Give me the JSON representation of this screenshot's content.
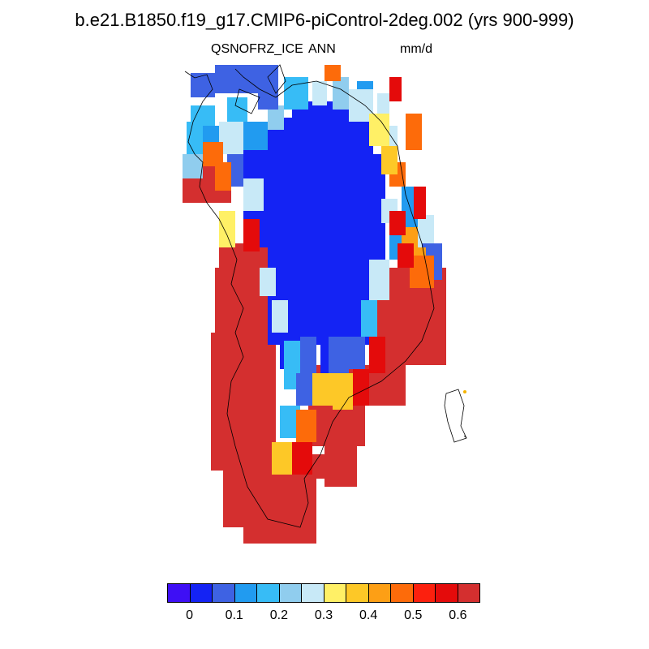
{
  "title": "b.e21.B1850.f19_g17.CMIP6-piControl-2deg.002 (yrs 900-999)",
  "variable": "QSNOFRZ_ICE",
  "season": "ANN",
  "units": "mm/d",
  "colorbar": {
    "colors": [
      "#3e0ff5",
      "#1423f4",
      "#3e62e3",
      "#219bf0",
      "#37bcf6",
      "#90cdee",
      "#c8e9f7",
      "#fff066",
      "#fdc827",
      "#fd9f15",
      "#fd6b0a",
      "#fc200e",
      "#e40b0b",
      "#d42f2f"
    ],
    "tick_labels": [
      "0",
      "0.1",
      "0.2",
      "0.3",
      "0.4",
      "0.5",
      "0.6"
    ]
  },
  "map_cells": {
    "description_colors_index": "index into colorbar.colors"
  }
}
